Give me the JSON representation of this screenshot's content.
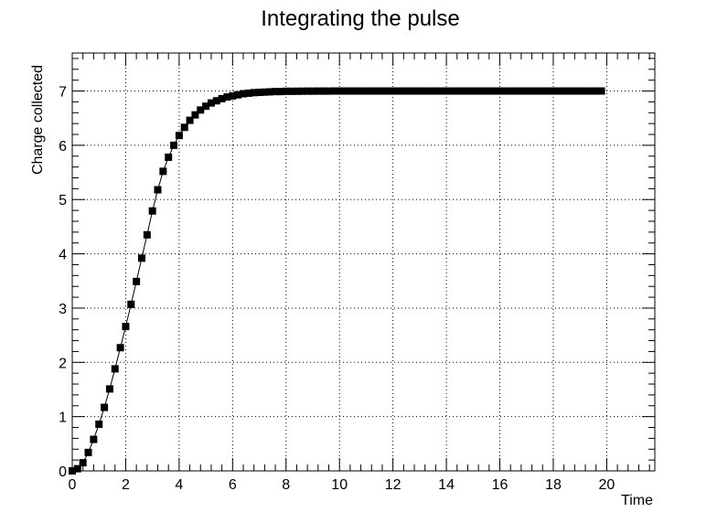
{
  "chart_data": {
    "type": "scatter",
    "title": "Integrating the pulse",
    "xlabel": "Time",
    "ylabel": "Charge collected",
    "xlim": [
      0,
      21.8
    ],
    "ylim": [
      0,
      7.7
    ],
    "grid": true,
    "legend": "none",
    "line_color": "#000000",
    "marker_color": "#000000",
    "marker": "square",
    "xticks": [
      0,
      2,
      4,
      6,
      8,
      10,
      12,
      14,
      16,
      18,
      20
    ],
    "xtick_labels": [
      "0",
      "2",
      "4",
      "6",
      "8",
      "10",
      "12",
      "14",
      "16",
      "18",
      "20"
    ],
    "yticks": [
      0,
      1,
      2,
      3,
      4,
      5,
      6,
      7
    ],
    "ytick_labels": [
      "0",
      "1",
      "2",
      "3",
      "4",
      "5",
      "6",
      "7"
    ],
    "series": [
      {
        "x": [
          0,
          0.2,
          0.4,
          0.6,
          0.8,
          1.0,
          1.2,
          1.4,
          1.6,
          1.8,
          2.0,
          2.2,
          2.4,
          2.6,
          2.8,
          3.0,
          3.2,
          3.4,
          3.6,
          3.8,
          4.0,
          4.2,
          4.4,
          4.6,
          4.8,
          5.0,
          5.2,
          5.4,
          5.6,
          5.8,
          6.0,
          6.2,
          6.4,
          6.6,
          6.8,
          7.0,
          7.2,
          7.4,
          7.6,
          7.8,
          8.0,
          8.2,
          8.4,
          8.6,
          8.8,
          9.0,
          9.2,
          9.4,
          9.6,
          9.8,
          10.0,
          10.2,
          10.4,
          10.6,
          10.8,
          11.0,
          11.2,
          11.4,
          11.6,
          11.8,
          12.0,
          12.2,
          12.4,
          12.6,
          12.8,
          13.0,
          13.2,
          13.4,
          13.6,
          13.8,
          14.0,
          14.2,
          14.4,
          14.6,
          14.8,
          15.0,
          15.2,
          15.4,
          15.6,
          15.8,
          16.0,
          16.2,
          16.4,
          16.6,
          16.8,
          17.0,
          17.2,
          17.4,
          17.6,
          17.8,
          18.0,
          18.2,
          18.4,
          18.6,
          18.8,
          19.0,
          19.2,
          19.4,
          19.6,
          19.8
        ],
        "y": [
          0.0,
          0.04,
          0.15,
          0.34,
          0.58,
          0.86,
          1.17,
          1.51,
          1.88,
          2.27,
          2.66,
          3.07,
          3.49,
          3.92,
          4.35,
          4.79,
          5.18,
          5.52,
          5.78,
          6.0,
          6.18,
          6.33,
          6.46,
          6.56,
          6.65,
          6.72,
          6.78,
          6.82,
          6.86,
          6.89,
          6.91,
          6.93,
          6.95,
          6.96,
          6.97,
          6.975,
          6.98,
          6.985,
          6.99,
          6.99,
          6.995,
          6.995,
          6.996,
          6.997,
          6.998,
          6.998,
          6.999,
          6.999,
          6.999,
          7.0,
          7.0,
          7.0,
          7.0,
          7.0,
          7.0,
          7.0,
          7.0,
          7.0,
          7.0,
          7.0,
          7.0,
          7.0,
          7.0,
          7.0,
          7.0,
          7.0,
          7.0,
          7.0,
          7.0,
          7.0,
          7.0,
          7.0,
          7.0,
          7.0,
          7.0,
          7.0,
          7.0,
          7.0,
          7.0,
          7.0,
          7.0,
          7.0,
          7.0,
          7.0,
          7.0,
          7.0,
          7.0,
          7.0,
          7.0,
          7.0,
          7.0,
          7.0,
          7.0,
          7.0,
          7.0,
          7.0,
          7.0,
          7.0,
          7.0,
          7.0
        ]
      }
    ]
  }
}
